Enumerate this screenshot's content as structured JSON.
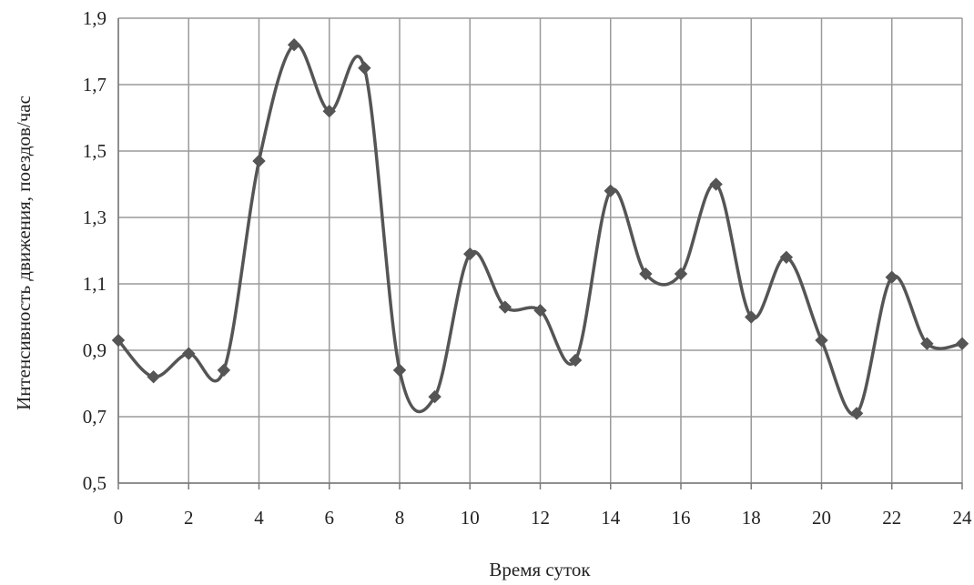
{
  "chart_data": {
    "type": "line",
    "title": "",
    "xlabel": "Время суток",
    "ylabel": "Интенсивность движения, поездов/час",
    "xlim": [
      0,
      24
    ],
    "ylim": [
      0.5,
      1.9
    ],
    "x_ticks": [
      0,
      2,
      4,
      6,
      8,
      10,
      12,
      14,
      16,
      18,
      20,
      22,
      24
    ],
    "y_ticks": [
      "0,5",
      "0,7",
      "0,9",
      "1,1",
      "1,3",
      "1,5",
      "1,7",
      "1,9"
    ],
    "y_tick_values": [
      0.5,
      0.7,
      0.9,
      1.1,
      1.3,
      1.5,
      1.7,
      1.9
    ],
    "grid": true,
    "legend": "none",
    "series": [
      {
        "color": "#555555",
        "marker": "diamond",
        "smooth": true,
        "x": [
          0,
          1,
          2,
          3,
          4,
          5,
          6,
          7,
          8,
          9,
          10,
          11,
          12,
          13,
          14,
          15,
          16,
          17,
          18,
          19,
          20,
          21,
          22,
          23,
          24
        ],
        "y": [
          0.93,
          0.82,
          0.89,
          0.84,
          1.47,
          1.82,
          1.62,
          1.75,
          0.84,
          0.76,
          1.19,
          1.03,
          1.02,
          0.87,
          1.38,
          1.13,
          1.13,
          1.4,
          1.0,
          1.18,
          0.93,
          0.71,
          1.12,
          0.92,
          0.92
        ]
      }
    ]
  }
}
